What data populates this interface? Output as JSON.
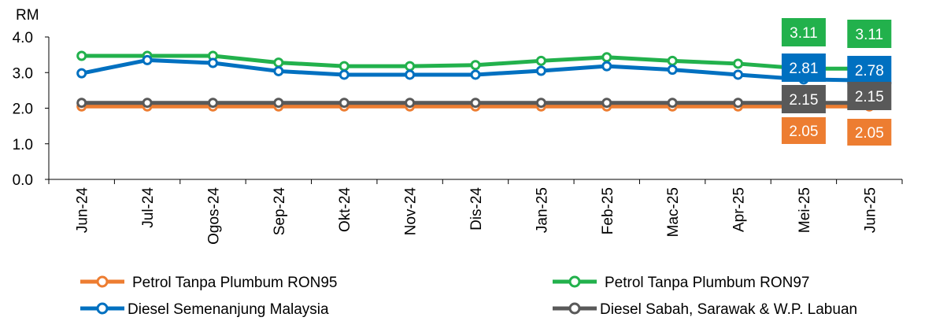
{
  "chart_data": {
    "type": "line",
    "ylabel": "RM",
    "ylim": [
      0,
      4
    ],
    "yticks": [
      "0.0",
      "1.0",
      "2.0",
      "3.0",
      "4.0"
    ],
    "categories": [
      "Jun-24",
      "Jul-24",
      "Ogos-24",
      "Sep-24",
      "Okt-24",
      "Nov-24",
      "Dis-24",
      "Jan-25",
      "Feb-25",
      "Mac-25",
      "Apr-25",
      "Mei-25",
      "Jun-25"
    ],
    "series": [
      {
        "name": "Petrol Tanpa Plumbum RON95",
        "color": "#ED7D31",
        "values": [
          2.05,
          2.05,
          2.05,
          2.05,
          2.05,
          2.05,
          2.05,
          2.05,
          2.05,
          2.05,
          2.05,
          2.05,
          2.05
        ]
      },
      {
        "name": "Petrol Tanpa Plumbum RON97",
        "color": "#22B14C",
        "values": [
          3.47,
          3.47,
          3.47,
          3.28,
          3.18,
          3.18,
          3.21,
          3.33,
          3.43,
          3.33,
          3.25,
          3.11,
          3.11
        ]
      },
      {
        "name": "Diesel Semenanjung Malaysia",
        "color": "#0070C0",
        "values": [
          2.98,
          3.35,
          3.27,
          3.04,
          2.94,
          2.94,
          2.94,
          3.05,
          3.18,
          3.08,
          2.94,
          2.81,
          2.78
        ]
      },
      {
        "name": "Diesel Sabah, Sarawak & W.P. Labuan",
        "color": "#595959",
        "values": [
          2.15,
          2.15,
          2.15,
          2.15,
          2.15,
          2.15,
          2.15,
          2.15,
          2.15,
          2.15,
          2.15,
          2.15,
          2.15
        ]
      }
    ],
    "value_labels": {
      "Mei-25": {
        "RON97": "3.11",
        "Diesel Semenanjung": "2.81",
        "Diesel Sabah": "2.15",
        "RON95": "2.05"
      },
      "Jun-25": {
        "RON97": "3.11",
        "Diesel Semenanjung": "2.78",
        "Diesel Sabah": "2.15",
        "RON95": "2.05"
      }
    },
    "grid": false,
    "legend_position": "bottom"
  }
}
